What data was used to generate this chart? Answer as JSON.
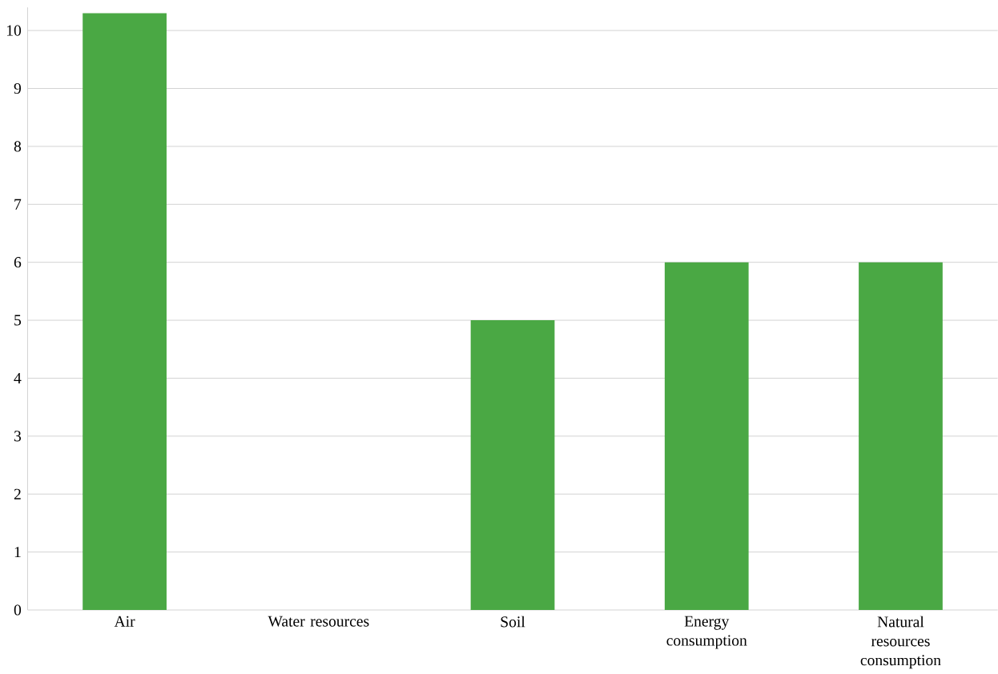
{
  "chart_data": {
    "type": "bar",
    "categories": [
      "Air",
      "Water resources",
      "Soil",
      "Energy consumption",
      "Natural resources consumption"
    ],
    "values": [
      10.3,
      0,
      5,
      6,
      6
    ],
    "color": "#4aa844",
    "ylim": [
      0,
      10.4
    ],
    "yticks": [
      0,
      1,
      2,
      3,
      4,
      5,
      6,
      7,
      8,
      9,
      10
    ],
    "grid": "y"
  }
}
